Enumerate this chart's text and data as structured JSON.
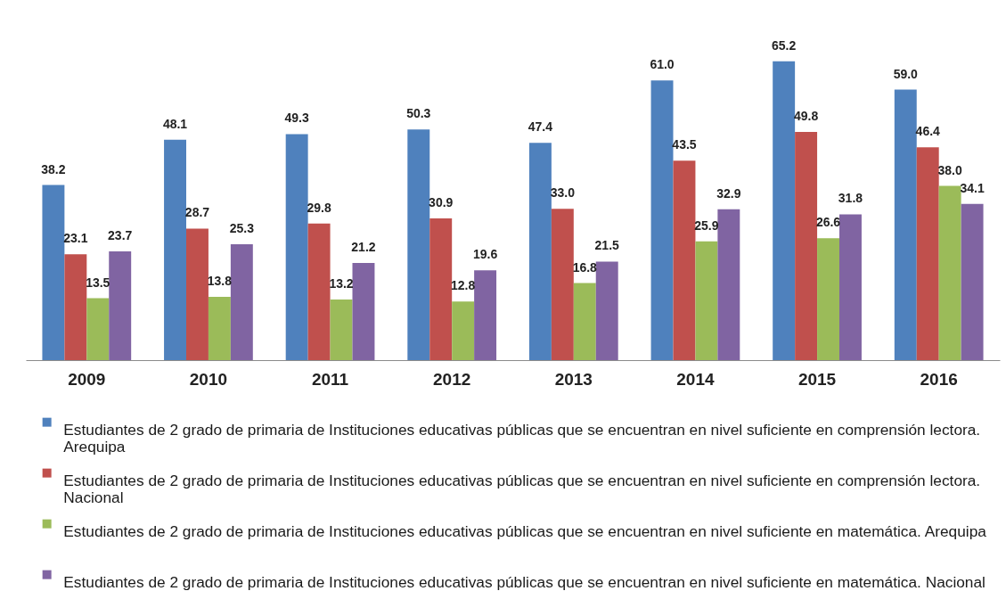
{
  "chart_data": {
    "type": "bar",
    "categories": [
      "2009",
      "2010",
      "2011",
      "2012",
      "2013",
      "2014",
      "2015",
      "2016"
    ],
    "series": [
      {
        "name": "Estudiantes de 2 grado de primaria de Instituciones educativas públicas que se encuentran en nivel suficiente en comprensión lectora. Arequipa",
        "color": "#4f81bd",
        "values": [
          38.2,
          48.1,
          49.3,
          50.3,
          47.4,
          61.0,
          65.2,
          59.0
        ],
        "value_labels": [
          "38.2",
          "48.1",
          "49.3",
          "50.3",
          "47.4",
          "61.0",
          "65.2",
          "59.0"
        ]
      },
      {
        "name": "Estudiantes de 2 grado de primaria de Instituciones educativas públicas que se encuentran en nivel suficiente en comprensión lectora. Nacional",
        "color": "#c0504d",
        "values": [
          23.1,
          28.7,
          29.8,
          30.9,
          33.0,
          43.5,
          49.8,
          46.4
        ],
        "value_labels": [
          "23.1",
          "28.7",
          "29.8",
          "30.9",
          "33.0",
          "43.5",
          "49.8",
          "46.4"
        ]
      },
      {
        "name": "Estudiantes de 2 grado de primaria de Instituciones educativas públicas que se encuentran en nivel suficiente en matemática. Arequipa",
        "color": "#9bbb59",
        "values": [
          13.5,
          13.8,
          13.2,
          12.8,
          16.8,
          25.9,
          26.6,
          38.0
        ],
        "value_labels": [
          "13.5",
          "13.8",
          "13.2",
          "12.8",
          "16.8",
          "25.9",
          "26.6",
          "38.0"
        ]
      },
      {
        "name": "Estudiantes de 2 grado de primaria de Instituciones educativas públicas que se encuentran en nivel suficiente en matemática. Nacional",
        "color": "#8064a2",
        "values": [
          23.7,
          25.3,
          21.2,
          19.6,
          21.5,
          32.9,
          31.8,
          34.1
        ],
        "value_labels": [
          "23.7",
          "25.3",
          "21.2",
          "19.6",
          "21.5",
          "32.9",
          "31.8",
          "34.1"
        ]
      }
    ],
    "legend": "bottom",
    "tick_labels": "x"
  }
}
